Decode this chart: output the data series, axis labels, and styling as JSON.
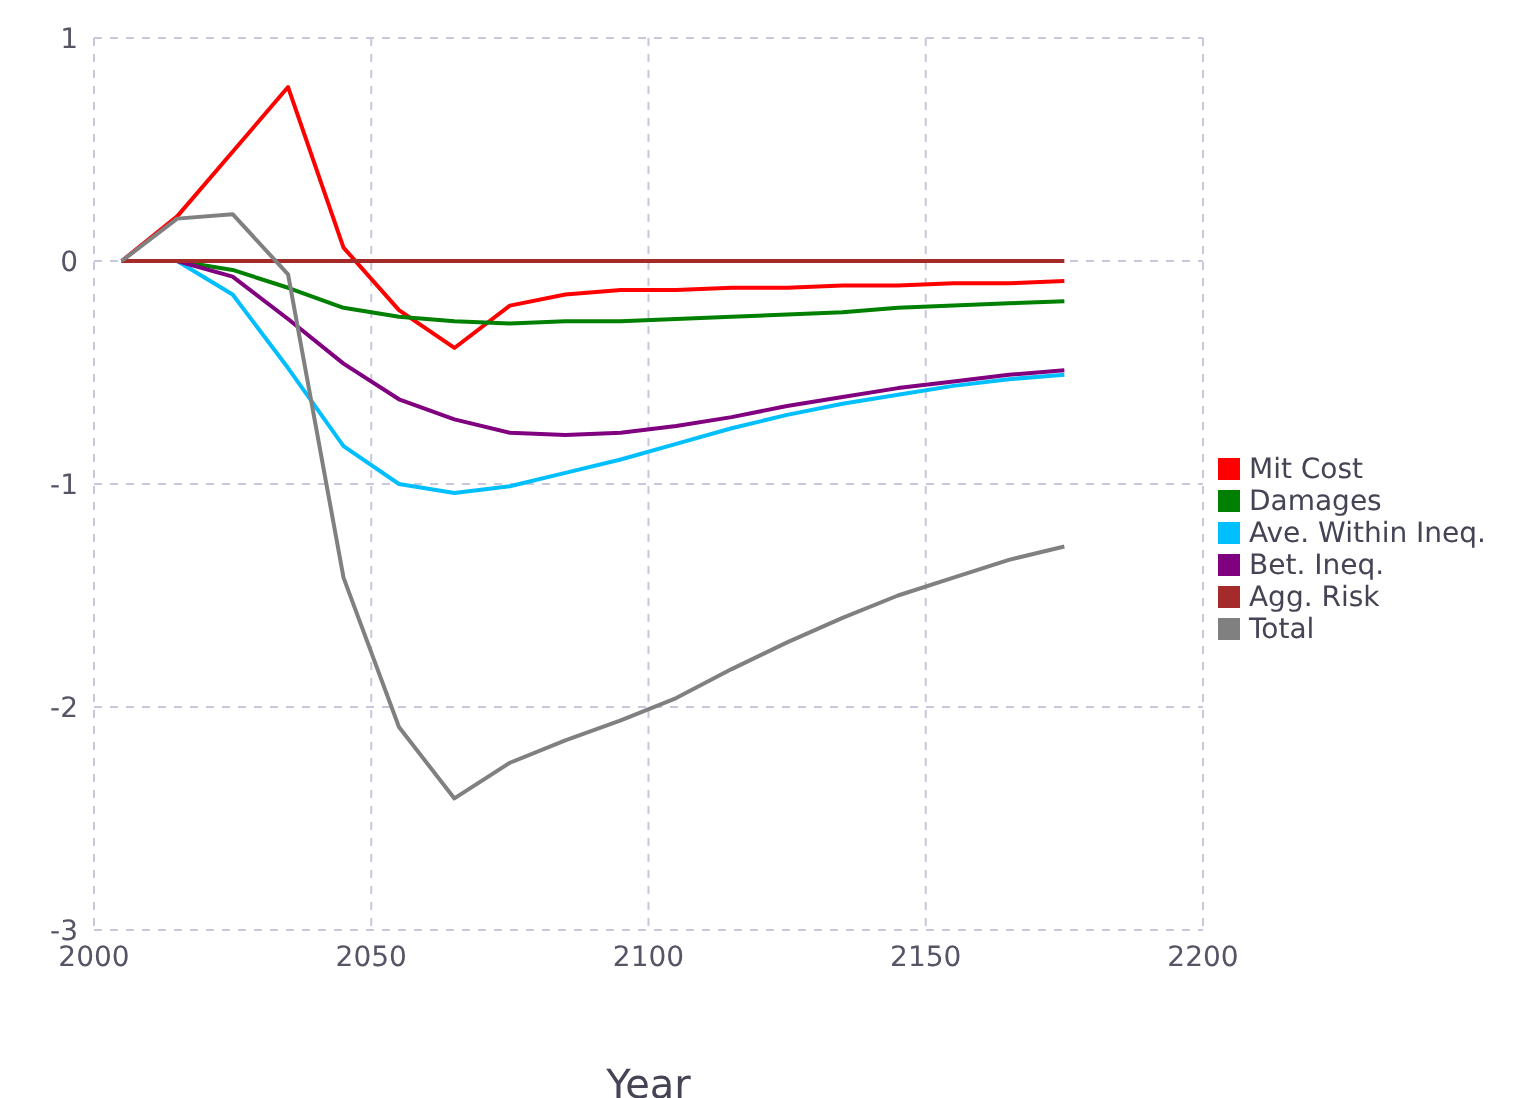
{
  "chart_data": {
    "type": "line",
    "xlabel": "Year",
    "x": [
      2005,
      2015,
      2025,
      2035,
      2045,
      2055,
      2065,
      2075,
      2085,
      2095,
      2105,
      2115,
      2125,
      2135,
      2145,
      2155,
      2165,
      2175
    ],
    "series": [
      {
        "name": "Mit Cost",
        "color": "#ff0000",
        "values": [
          0,
          0.2,
          0.49,
          0.78,
          0.06,
          -0.22,
          -0.39,
          -0.2,
          -0.15,
          -0.13,
          -0.13,
          -0.12,
          -0.12,
          -0.11,
          -0.11,
          -0.1,
          -0.1,
          -0.09
        ]
      },
      {
        "name": "Damages",
        "color": "#008000",
        "values": [
          0,
          0,
          -0.04,
          -0.12,
          -0.21,
          -0.25,
          -0.27,
          -0.28,
          -0.27,
          -0.27,
          -0.26,
          -0.25,
          -0.24,
          -0.23,
          -0.21,
          -0.2,
          -0.19,
          -0.18
        ]
      },
      {
        "name": "Ave. Within Ineq.",
        "color": "#00bfff",
        "values": [
          0,
          0,
          -0.15,
          -0.48,
          -0.83,
          -1.0,
          -1.04,
          -1.01,
          -0.95,
          -0.89,
          -0.82,
          -0.75,
          -0.69,
          -0.64,
          -0.6,
          -0.56,
          -0.53,
          -0.51
        ]
      },
      {
        "name": "Bet. Ineq.",
        "color": "#800080",
        "values": [
          0,
          0,
          -0.07,
          -0.26,
          -0.46,
          -0.62,
          -0.71,
          -0.77,
          -0.78,
          -0.77,
          -0.74,
          -0.7,
          -0.65,
          -0.61,
          -0.57,
          -0.54,
          -0.51,
          -0.49
        ]
      },
      {
        "name": "Agg. Risk",
        "color": "#a52a2a",
        "values": [
          0,
          0,
          0,
          0,
          0,
          0,
          0,
          0,
          0,
          0,
          0,
          0,
          0,
          0,
          0,
          0,
          0,
          0
        ]
      },
      {
        "name": "Total",
        "color": "#808080",
        "values": [
          0,
          0.19,
          0.21,
          -0.06,
          -1.42,
          -2.09,
          -2.41,
          -2.25,
          -2.15,
          -2.06,
          -1.96,
          -1.83,
          -1.71,
          -1.6,
          -1.5,
          -1.42,
          -1.34,
          -1.28
        ]
      }
    ],
    "xlim": [
      2000,
      2200
    ],
    "xticks": [
      2000,
      2050,
      2100,
      2150,
      2200
    ],
    "ylim": [
      -3,
      1
    ],
    "yticks": [
      -3,
      -2,
      -1,
      0,
      1
    ],
    "grid": true,
    "legend": "right",
    "marker": "none",
    "line_style": "solid"
  }
}
